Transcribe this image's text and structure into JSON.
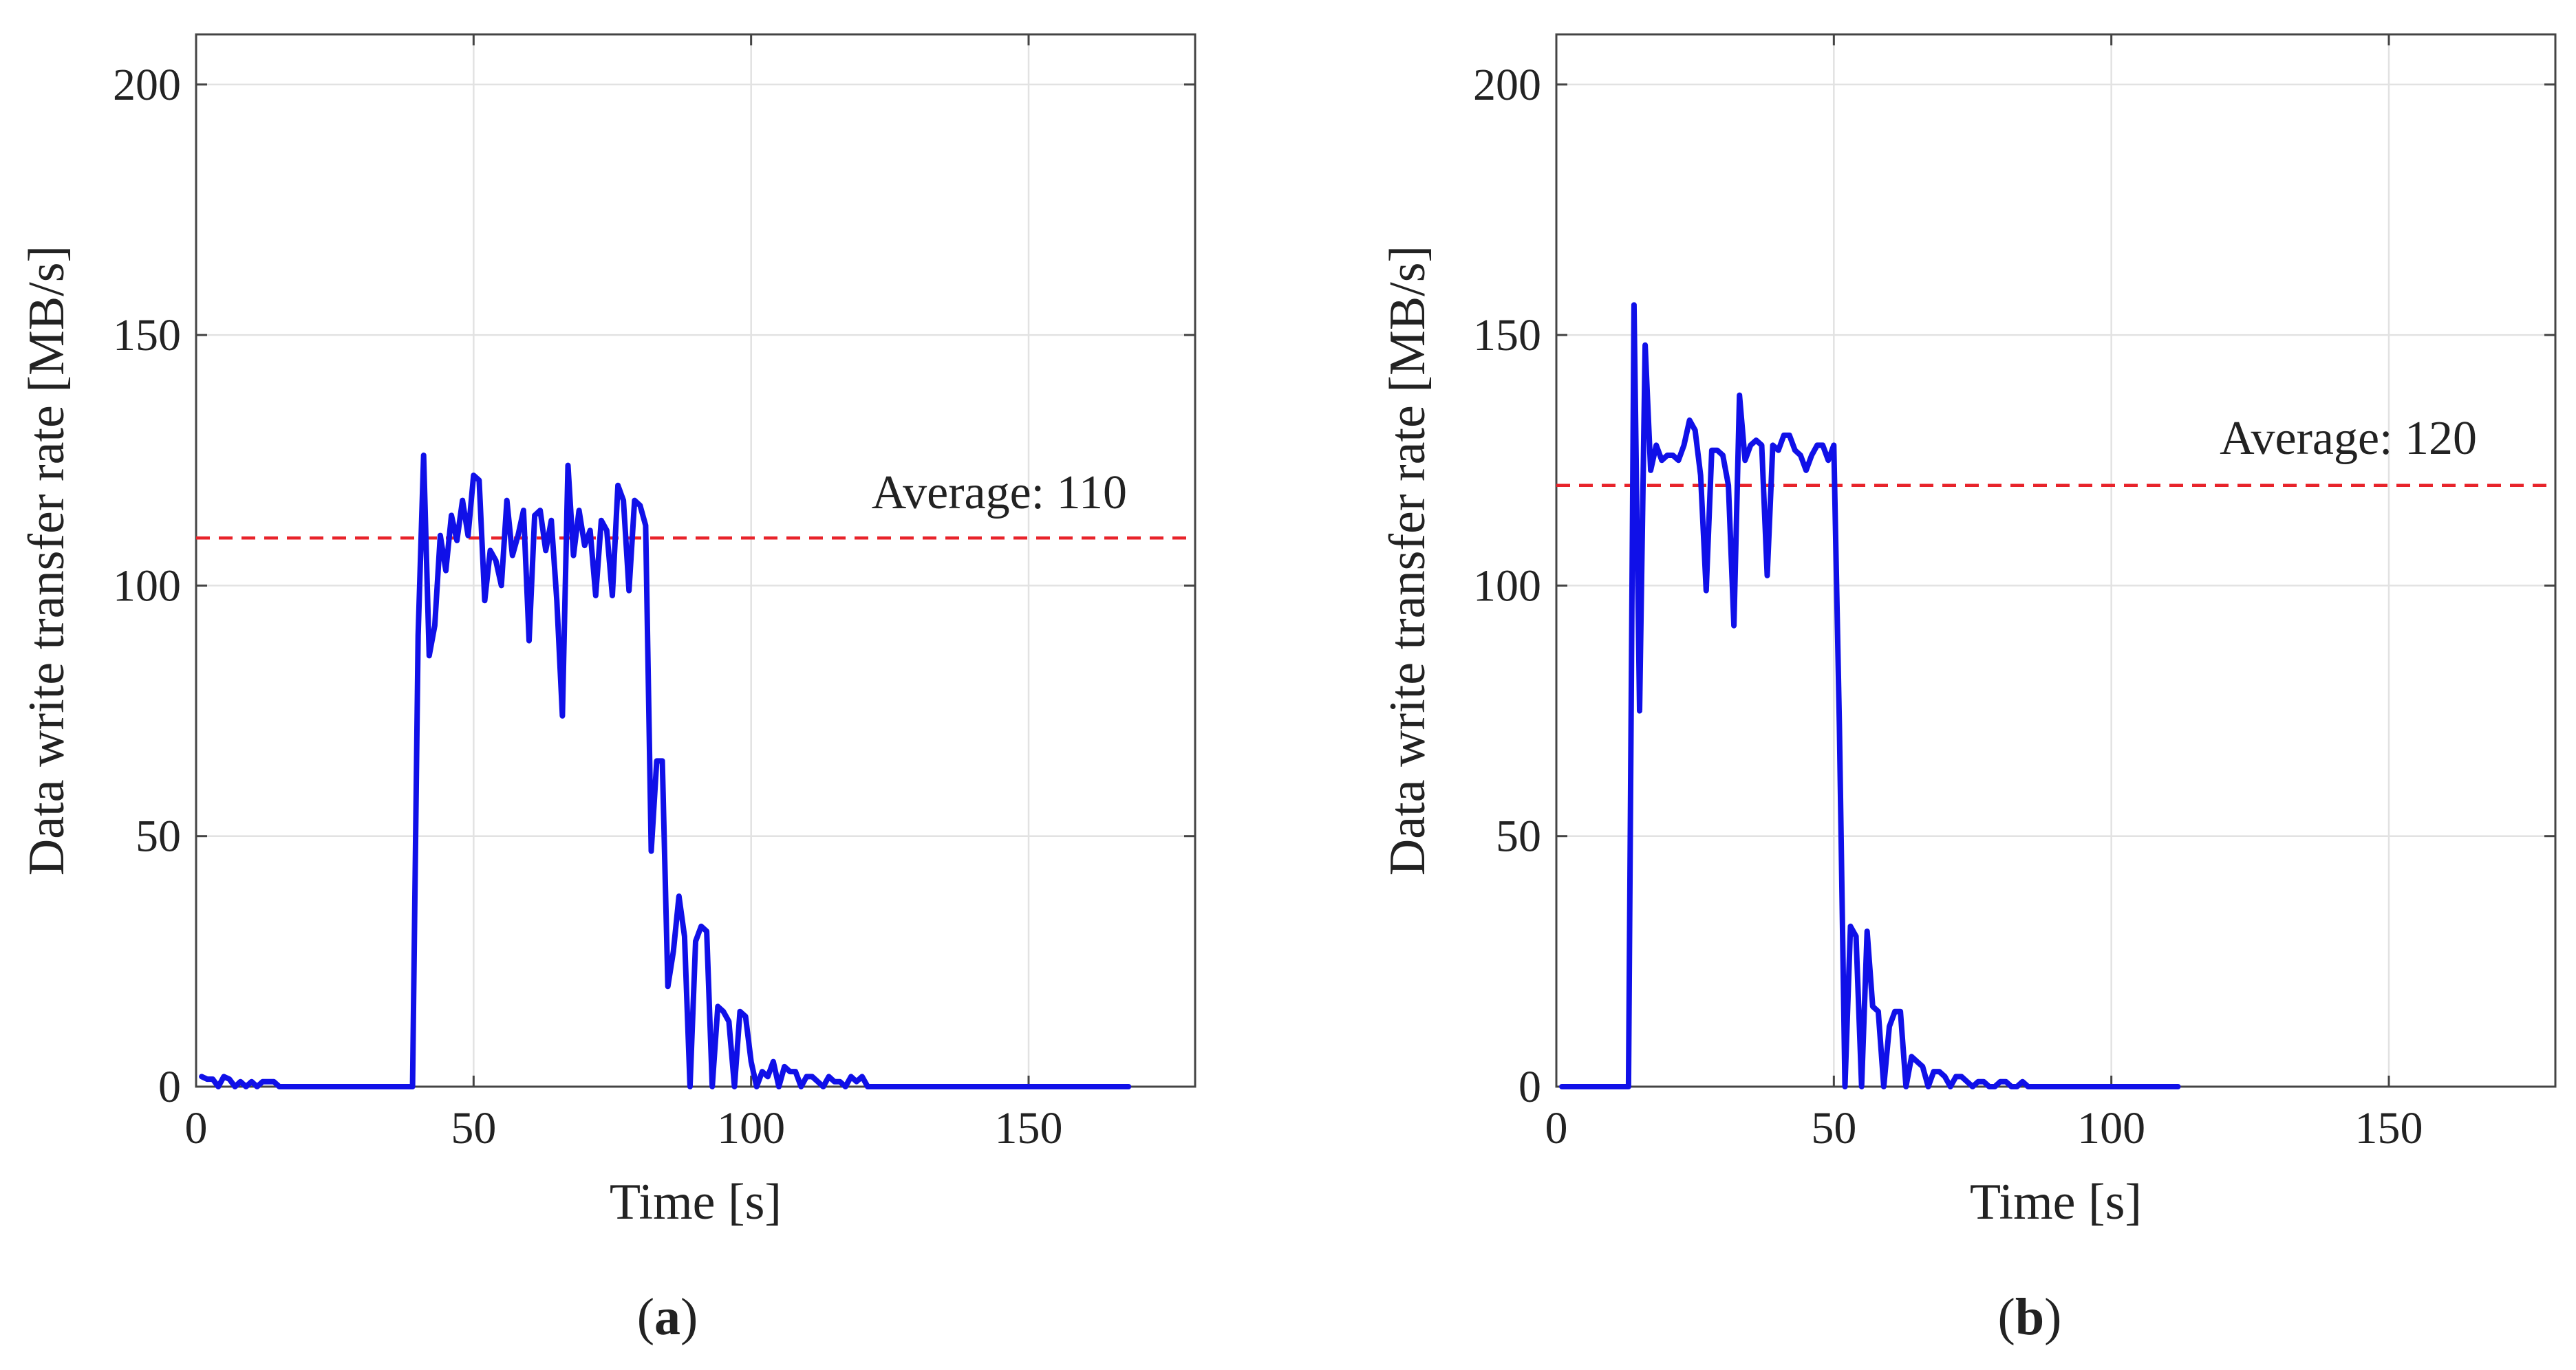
{
  "chart_data": [
    {
      "panel": "a",
      "panel_label": {
        "open": "(",
        "letter": "a",
        "close": ")"
      },
      "type": "line",
      "title": "",
      "xlabel": "Time [s]",
      "ylabel": "Data write transfer rate [MB/s]",
      "xlim": [
        0,
        180
      ],
      "ylim": [
        0,
        210
      ],
      "xticks": [
        0,
        50,
        100,
        150
      ],
      "yticks": [
        0,
        50,
        100,
        150,
        200
      ],
      "grid": true,
      "average": {
        "value": 109.5,
        "label": "Average: 110",
        "color": "#e8232a"
      },
      "series": [
        {
          "name": "transfer rate",
          "color": "#1010e8",
          "x": [
            1,
            2,
            3,
            4,
            5,
            6,
            7,
            8,
            9,
            10,
            11,
            12,
            13,
            14,
            15,
            16,
            20,
            25,
            30,
            35,
            39,
            40,
            41,
            42,
            43,
            44,
            45,
            46,
            47,
            48,
            49,
            50,
            51,
            52,
            53,
            54,
            55,
            56,
            57,
            58,
            59,
            60,
            61,
            62,
            63,
            64,
            65,
            66,
            67,
            68,
            69,
            70,
            71,
            72,
            73,
            74,
            75,
            76,
            77,
            78,
            79,
            80,
            81,
            82,
            83,
            84,
            85,
            86,
            87,
            88,
            89,
            90,
            91,
            92,
            93,
            94,
            95,
            96,
            97,
            98,
            99,
            100,
            101,
            102,
            103,
            104,
            105,
            106,
            107,
            108,
            109,
            110,
            111,
            112,
            113,
            114,
            115,
            116,
            117,
            118,
            119,
            120,
            121,
            125,
            130,
            140,
            150,
            160,
            168
          ],
          "y": [
            2,
            1.5,
            1.5,
            0,
            2,
            1.5,
            0,
            1,
            0,
            1,
            0,
            1,
            1,
            1,
            0,
            0,
            0,
            0,
            0,
            0,
            0,
            90,
            126,
            86,
            92,
            110,
            103,
            114,
            109,
            117,
            110,
            122,
            121,
            97,
            107,
            105,
            100,
            117,
            106,
            110,
            115,
            89,
            114,
            115,
            107,
            113,
            97,
            74,
            124,
            106,
            115,
            108,
            111,
            98,
            113,
            111,
            98,
            120,
            117,
            99,
            117,
            116,
            112,
            47,
            65,
            65,
            20,
            27,
            38,
            30,
            0,
            29,
            32,
            31,
            0,
            16,
            15,
            13,
            0,
            15,
            14,
            5,
            0,
            3,
            2,
            5,
            0,
            4,
            3,
            3,
            0,
            2,
            2,
            1,
            0,
            2,
            1,
            1,
            0,
            2,
            1,
            2,
            0,
            0,
            0,
            0,
            0,
            0,
            0
          ]
        }
      ]
    },
    {
      "panel": "b",
      "panel_label": {
        "open": "(",
        "letter": "b",
        "close": ")"
      },
      "type": "line",
      "title": "",
      "xlabel": "Time [s]",
      "ylabel": "Data write transfer rate [MB/s]",
      "xlim": [
        0,
        180
      ],
      "ylim": [
        0,
        210
      ],
      "xticks": [
        0,
        50,
        100,
        150
      ],
      "yticks": [
        0,
        50,
        100,
        150,
        200
      ],
      "grid": true,
      "average": {
        "value": 120,
        "label": "Average: 120",
        "color": "#e8232a"
      },
      "series": [
        {
          "name": "transfer rate",
          "color": "#1010e8",
          "x": [
            1,
            5,
            10,
            13,
            14,
            15,
            16,
            17,
            18,
            19,
            20,
            21,
            22,
            23,
            24,
            25,
            26,
            27,
            28,
            29,
            30,
            31,
            32,
            33,
            34,
            35,
            36,
            37,
            38,
            39,
            40,
            41,
            42,
            43,
            44,
            45,
            46,
            47,
            48,
            49,
            50,
            51,
            52,
            53,
            54,
            55,
            56,
            57,
            58,
            59,
            60,
            61,
            62,
            63,
            64,
            65,
            66,
            67,
            68,
            69,
            70,
            71,
            72,
            73,
            74,
            75,
            76,
            77,
            78,
            79,
            80,
            81,
            82,
            83,
            84,
            85,
            86,
            87,
            88,
            89,
            90,
            92,
            95,
            100,
            105,
            110,
            112
          ],
          "y": [
            0,
            0,
            0,
            0,
            156,
            75,
            148,
            123,
            128,
            125,
            126,
            126,
            125,
            128,
            133,
            131,
            122,
            99,
            127,
            127,
            126,
            120,
            92,
            138,
            125,
            128,
            129,
            128,
            102,
            128,
            127,
            130,
            130,
            127,
            126,
            123,
            126,
            128,
            128,
            125,
            128,
            72,
            0,
            32,
            30,
            0,
            31,
            16,
            15,
            0,
            12,
            15,
            15,
            0,
            6,
            5,
            4,
            0,
            3,
            3,
            2,
            0,
            2,
            2,
            1,
            0,
            1,
            1,
            0,
            0,
            1,
            1,
            0,
            0,
            1,
            0,
            0,
            0,
            0,
            0,
            0,
            0,
            0,
            0,
            0,
            0,
            0
          ]
        }
      ]
    }
  ]
}
